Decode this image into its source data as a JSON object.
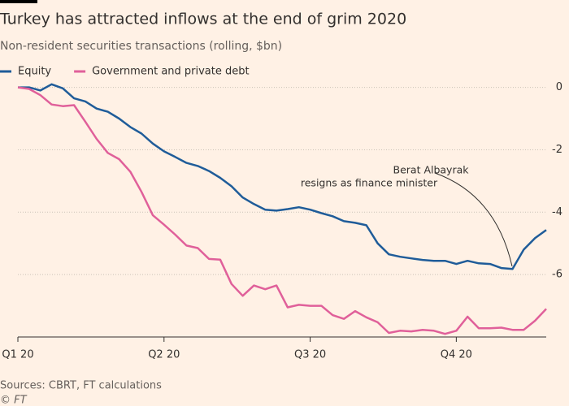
{
  "chart_data": {
    "type": "line",
    "title": "Turkey has attracted inflows at the end of grim 2020",
    "subtitle": "Non-resident securities transactions (rolling, $bn)",
    "categories": [
      "Q1 20",
      null,
      null,
      null,
      null,
      null,
      null,
      null,
      null,
      null,
      null,
      null,
      null,
      "Q2 20",
      null,
      null,
      null,
      null,
      null,
      null,
      null,
      null,
      null,
      null,
      null,
      null,
      "Q3 20",
      null,
      null,
      null,
      null,
      null,
      null,
      null,
      null,
      null,
      null,
      null,
      null,
      "Q4 20",
      null,
      null,
      null,
      null,
      null,
      null,
      null,
      null
    ],
    "series": [
      {
        "name": "Equity",
        "color": "#1f5c99",
        "values": [
          0,
          0,
          -0.1,
          0.1,
          -0.03,
          -0.35,
          -0.45,
          -0.68,
          -0.78,
          -1.0,
          -1.27,
          -1.48,
          -1.8,
          -2.05,
          -2.23,
          -2.42,
          -2.52,
          -2.68,
          -2.9,
          -3.17,
          -3.53,
          -3.74,
          -3.92,
          -3.95,
          -3.9,
          -3.84,
          -3.92,
          -4.03,
          -4.13,
          -4.29,
          -4.34,
          -4.42,
          -5.0,
          -5.35,
          -5.43,
          -5.48,
          -5.53,
          -5.56,
          -5.56,
          -5.66,
          -5.56,
          -5.64,
          -5.66,
          -5.79,
          -5.82,
          -5.2,
          -4.83,
          -4.57
        ]
      },
      {
        "name": "Government and private debt",
        "color": "#e0609a",
        "values": [
          0,
          -0.05,
          -0.25,
          -0.55,
          -0.6,
          -0.57,
          -1.1,
          -1.65,
          -2.1,
          -2.3,
          -2.7,
          -3.35,
          -4.1,
          -4.4,
          -4.72,
          -5.07,
          -5.15,
          -5.5,
          -5.52,
          -6.3,
          -6.68,
          -6.35,
          -6.47,
          -6.35,
          -7.05,
          -6.97,
          -7.0,
          -7.0,
          -7.3,
          -7.42,
          -7.17,
          -7.37,
          -7.53,
          -7.87,
          -7.8,
          -7.82,
          -7.77,
          -7.8,
          -7.9,
          -7.8,
          -7.35,
          -7.72,
          -7.72,
          -7.7,
          -7.77,
          -7.77,
          -7.48,
          -7.1
        ]
      }
    ],
    "ylim": [
      -8,
      0.25
    ],
    "yticks": [
      0,
      -2,
      -4,
      -6
    ],
    "grid": true,
    "legend": "top-left",
    "annotation": [
      "Berat Albayrak",
      "resigns as finance minister"
    ],
    "source": "Sources: CBRT, FT calculations",
    "credit": "© FT"
  }
}
